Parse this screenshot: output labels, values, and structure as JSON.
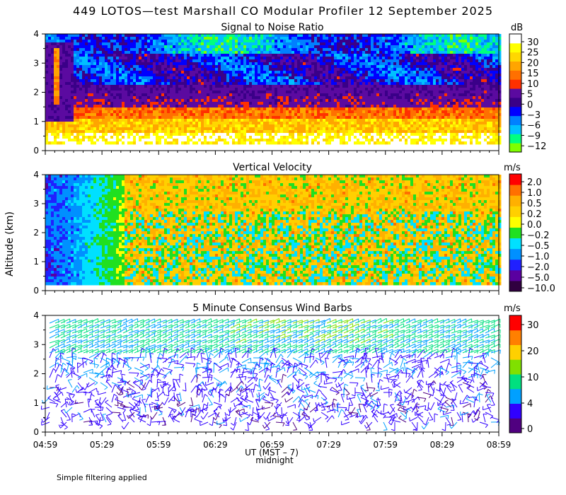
{
  "title": "449 LOTOS—test Marshall CO Modular Profiler 12 September 2025",
  "ylabel": "Altitude (km)",
  "xlabel": "UT  (MST – 7)",
  "midnight_label": "midnight",
  "footnote": "Simple filtering applied",
  "xticks": [
    "04:59",
    "05:29",
    "05:59",
    "06:29",
    "06:59",
    "07:29",
    "07:59",
    "08:29",
    "08:59"
  ],
  "yticks": [
    "0",
    "1",
    "2",
    "3",
    "4"
  ],
  "colors": {
    "snr": [
      "#7fff00",
      "#00ff7f",
      "#00bfff",
      "#0080ff",
      "#0000ff",
      "#3a0088",
      "#5b0aa0",
      "#ff3000",
      "#ff7000",
      "#ffa500",
      "#ffd700",
      "#ffff00",
      "#ffffff"
    ],
    "vv": [
      "#300040",
      "#5a00a0",
      "#2020ff",
      "#0090ff",
      "#00e0ff",
      "#20e020",
      "#ffff00",
      "#ffd000",
      "#ffb000",
      "#ff7000",
      "#ff0000"
    ],
    "wind": [
      "#500080",
      "#3000ff",
      "#00a0ff",
      "#00e080",
      "#80e000",
      "#ffd000",
      "#ff8000",
      "#ff0000"
    ]
  },
  "chart_data": [
    {
      "type": "heatmap",
      "title": "Signal to Noise Ratio",
      "unit": "dB",
      "colorbar_ticks": [
        "30",
        "25",
        "20",
        "15",
        "10",
        "5",
        "0",
        "−3",
        "−6",
        "−9",
        "−12"
      ],
      "x_range": [
        "04:59",
        "08:59"
      ],
      "ylim": [
        0,
        4
      ],
      "profile_km": [
        {
          "altitude_km": 0.3,
          "value_db": 20
        },
        {
          "altitude_km": 1.0,
          "value_db": 12
        },
        {
          "altitude_km": 1.5,
          "value_db": 5
        },
        {
          "altitude_km": 2.0,
          "value_db": 0
        },
        {
          "altitude_km": 3.0,
          "value_db": -6
        },
        {
          "altitude_km": 4.0,
          "value_db": -9
        }
      ]
    },
    {
      "type": "heatmap",
      "title": "Vertical Velocity",
      "unit": "m/s",
      "colorbar_ticks": [
        "2.0",
        "1.0",
        "0.5",
        "0.2",
        "0.0",
        "−0.2",
        "−0.5",
        "−1.0",
        "−2.0",
        "−5.0",
        "−10.0"
      ],
      "x_range": [
        "04:59",
        "08:59"
      ],
      "ylim": [
        0,
        4
      ]
    },
    {
      "type": "scatter",
      "title": "5 Minute Consensus Wind Barbs",
      "unit": "m/s",
      "colorbar_ticks": [
        "30",
        "20",
        "10",
        "4",
        "0"
      ],
      "x_range": [
        "04:59",
        "08:59"
      ],
      "ylim": [
        0,
        4
      ]
    }
  ]
}
